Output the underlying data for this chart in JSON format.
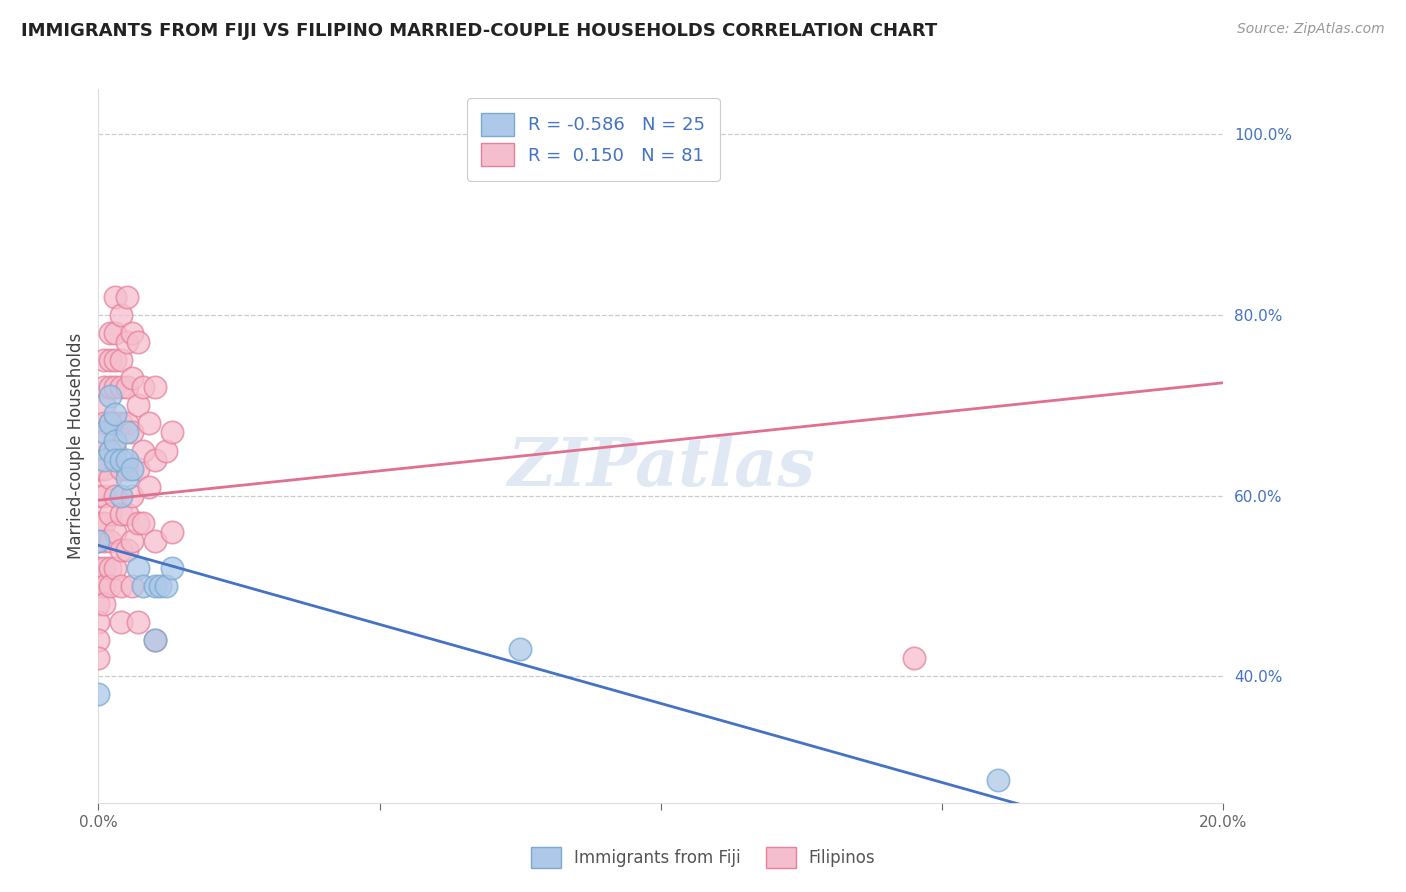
{
  "title": "IMMIGRANTS FROM FIJI VS FILIPINO MARRIED-COUPLE HOUSEHOLDS CORRELATION CHART",
  "source": "Source: ZipAtlas.com",
  "ylabel": "Married-couple Households",
  "xlim": [
    0.0,
    0.2
  ],
  "ylim": [
    0.26,
    1.05
  ],
  "fiji_color": "#adc8e8",
  "fiji_edge_color": "#7aaad0",
  "filipino_color": "#f5bece",
  "filipino_edge_color": "#e8809a",
  "fiji_R": -0.586,
  "fiji_N": 25,
  "filipino_R": 0.15,
  "filipino_N": 81,
  "watermark": "ZIPatlas",
  "fiji_line": [
    0.0,
    0.545,
    0.2,
    0.195
  ],
  "filipino_line": [
    0.0,
    0.595,
    0.2,
    0.725
  ],
  "fiji_scatter": [
    [
      0.0,
      0.55
    ],
    [
      0.001,
      0.64
    ],
    [
      0.001,
      0.67
    ],
    [
      0.002,
      0.71
    ],
    [
      0.002,
      0.68
    ],
    [
      0.002,
      0.65
    ],
    [
      0.003,
      0.66
    ],
    [
      0.003,
      0.64
    ],
    [
      0.003,
      0.69
    ],
    [
      0.004,
      0.6
    ],
    [
      0.004,
      0.64
    ],
    [
      0.005,
      0.67
    ],
    [
      0.005,
      0.64
    ],
    [
      0.005,
      0.62
    ],
    [
      0.006,
      0.63
    ],
    [
      0.007,
      0.52
    ],
    [
      0.008,
      0.5
    ],
    [
      0.01,
      0.5
    ],
    [
      0.01,
      0.44
    ],
    [
      0.011,
      0.5
    ],
    [
      0.012,
      0.5
    ],
    [
      0.013,
      0.52
    ],
    [
      0.16,
      0.285
    ],
    [
      0.075,
      0.43
    ],
    [
      0.0,
      0.38
    ]
  ],
  "filipino_scatter": [
    [
      0.0,
      0.63
    ],
    [
      0.0,
      0.6
    ],
    [
      0.0,
      0.57
    ],
    [
      0.0,
      0.55
    ],
    [
      0.0,
      0.52
    ],
    [
      0.0,
      0.5
    ],
    [
      0.0,
      0.48
    ],
    [
      0.0,
      0.46
    ],
    [
      0.0,
      0.44
    ],
    [
      0.0,
      0.42
    ],
    [
      0.001,
      0.75
    ],
    [
      0.001,
      0.72
    ],
    [
      0.001,
      0.7
    ],
    [
      0.001,
      0.68
    ],
    [
      0.001,
      0.66
    ],
    [
      0.001,
      0.63
    ],
    [
      0.001,
      0.6
    ],
    [
      0.001,
      0.57
    ],
    [
      0.001,
      0.55
    ],
    [
      0.001,
      0.52
    ],
    [
      0.001,
      0.5
    ],
    [
      0.001,
      0.48
    ],
    [
      0.002,
      0.78
    ],
    [
      0.002,
      0.75
    ],
    [
      0.002,
      0.72
    ],
    [
      0.002,
      0.68
    ],
    [
      0.002,
      0.65
    ],
    [
      0.002,
      0.62
    ],
    [
      0.002,
      0.58
    ],
    [
      0.002,
      0.55
    ],
    [
      0.002,
      0.52
    ],
    [
      0.002,
      0.5
    ],
    [
      0.003,
      0.82
    ],
    [
      0.003,
      0.78
    ],
    [
      0.003,
      0.75
    ],
    [
      0.003,
      0.72
    ],
    [
      0.003,
      0.68
    ],
    [
      0.003,
      0.65
    ],
    [
      0.003,
      0.6
    ],
    [
      0.003,
      0.56
    ],
    [
      0.003,
      0.52
    ],
    [
      0.004,
      0.8
    ],
    [
      0.004,
      0.75
    ],
    [
      0.004,
      0.72
    ],
    [
      0.004,
      0.68
    ],
    [
      0.004,
      0.63
    ],
    [
      0.004,
      0.58
    ],
    [
      0.004,
      0.54
    ],
    [
      0.004,
      0.5
    ],
    [
      0.004,
      0.46
    ],
    [
      0.005,
      0.82
    ],
    [
      0.005,
      0.77
    ],
    [
      0.005,
      0.72
    ],
    [
      0.005,
      0.68
    ],
    [
      0.005,
      0.63
    ],
    [
      0.005,
      0.58
    ],
    [
      0.005,
      0.54
    ],
    [
      0.006,
      0.78
    ],
    [
      0.006,
      0.73
    ],
    [
      0.006,
      0.67
    ],
    [
      0.006,
      0.6
    ],
    [
      0.006,
      0.55
    ],
    [
      0.006,
      0.5
    ],
    [
      0.007,
      0.77
    ],
    [
      0.007,
      0.7
    ],
    [
      0.007,
      0.63
    ],
    [
      0.007,
      0.57
    ],
    [
      0.007,
      0.46
    ],
    [
      0.008,
      0.72
    ],
    [
      0.008,
      0.65
    ],
    [
      0.008,
      0.57
    ],
    [
      0.009,
      0.68
    ],
    [
      0.009,
      0.61
    ],
    [
      0.01,
      0.72
    ],
    [
      0.01,
      0.64
    ],
    [
      0.01,
      0.55
    ],
    [
      0.01,
      0.44
    ],
    [
      0.012,
      0.65
    ],
    [
      0.013,
      0.67
    ],
    [
      0.013,
      0.56
    ],
    [
      0.145,
      0.42
    ]
  ]
}
